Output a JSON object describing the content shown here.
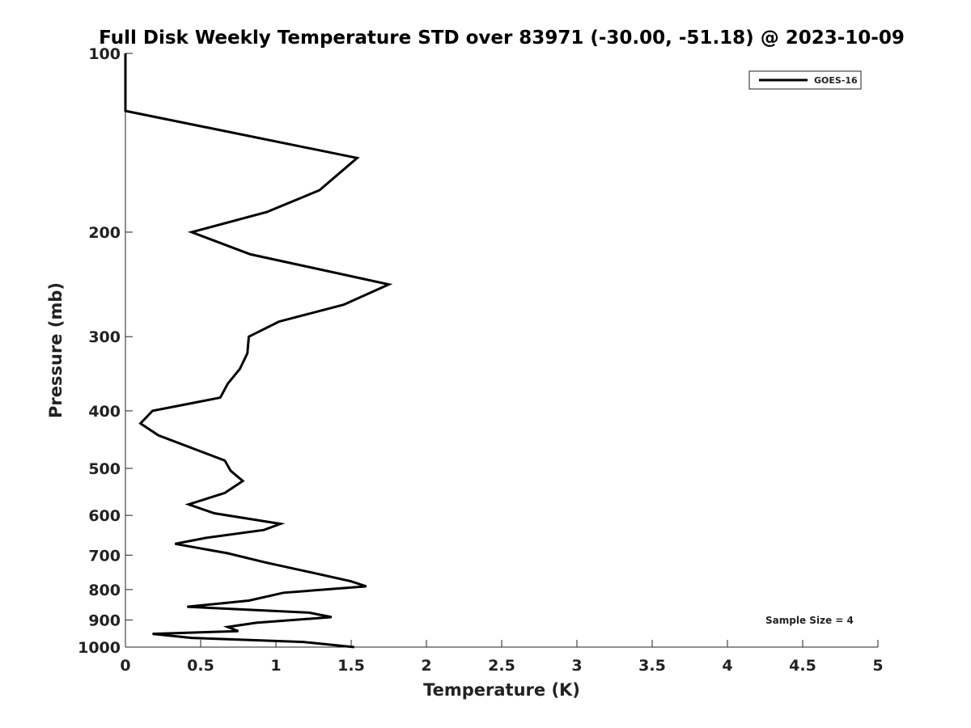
{
  "chart_data": {
    "type": "line",
    "title": "Full Disk Weekly Temperature STD over 83971 (-30.00, -51.18) @ 2023-10-09",
    "xlabel": "Temperature (K)",
    "ylabel": "Pressure (mb)",
    "xlim": [
      0,
      5
    ],
    "ylim": [
      100,
      1000
    ],
    "y_scale": "log",
    "y_reversed": true,
    "grid": false,
    "legend_position": "top-right",
    "x_ticks": [
      "0",
      "0.5",
      "1",
      "1.5",
      "2",
      "2.5",
      "3",
      "3.5",
      "4",
      "4.5",
      "5"
    ],
    "x_tick_values": [
      0,
      0.5,
      1,
      1.5,
      2,
      2.5,
      3,
      3.5,
      4,
      4.5,
      5
    ],
    "y_ticks": [
      "100",
      "200",
      "300",
      "400",
      "500",
      "600",
      "700",
      "800",
      "900",
      "1000"
    ],
    "y_tick_values": [
      100,
      200,
      300,
      400,
      500,
      600,
      700,
      800,
      900,
      1000
    ],
    "series": [
      {
        "name": "GOES-16",
        "color": "#000000",
        "x": [
          0,
          0,
          1.54,
          1.29,
          0.94,
          0.44,
          0.83,
          1.75,
          1.45,
          1.02,
          0.82,
          0.81,
          0.76,
          0.68,
          0.63,
          0.18,
          0.1,
          0.22,
          0.66,
          0.7,
          0.78,
          0.66,
          0.42,
          0.59,
          1.03,
          0.92,
          0.53,
          0.33,
          0.68,
          0.93,
          1.25,
          1.5,
          1.6,
          1.05,
          0.82,
          0.41,
          1.22,
          1.37,
          0.87,
          0.68,
          0.75,
          0.18,
          0.44,
          1.18,
          1.52
        ],
        "y": [
          100,
          125,
          150,
          170,
          185,
          200,
          218,
          245,
          265,
          283,
          300,
          320,
          340,
          360,
          380,
          400,
          420,
          440,
          485,
          505,
          525,
          550,
          575,
          595,
          620,
          635,
          655,
          670,
          695,
          720,
          750,
          775,
          790,
          810,
          835,
          855,
          875,
          890,
          910,
          925,
          940,
          950,
          965,
          980,
          1000
        ]
      }
    ],
    "annotations": [
      "Sample Size = 4"
    ]
  }
}
